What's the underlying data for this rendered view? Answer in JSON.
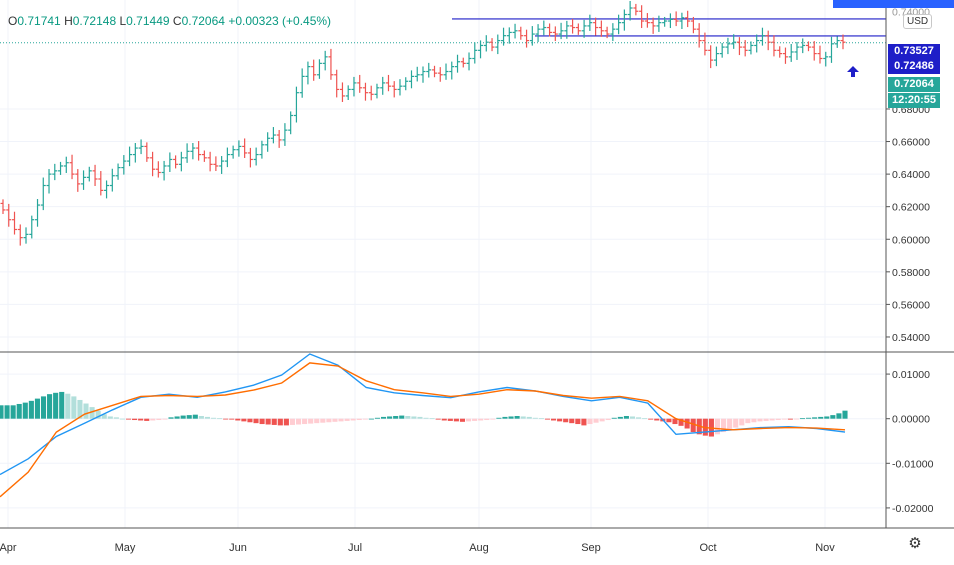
{
  "header": {
    "open_label": "O",
    "open_value": "0.71741",
    "high_label": "H",
    "high_value": "0.72148",
    "low_label": "L",
    "low_value": "0.71449",
    "close_label": "C",
    "close_value": "0.72064",
    "change": "+0.00323 (+0.45%)",
    "currency": "USD"
  },
  "price_tags": {
    "resistance_upper": "0.73527",
    "resistance_lower": "0.72486",
    "last_price": "0.72064",
    "countdown": "12:20:55"
  },
  "colors": {
    "up": "#26a69a",
    "down": "#ef5350",
    "line_blue": "#1e1ec8",
    "macd_line": "#2196f3",
    "signal_line": "#ff6d00",
    "hist_up_strong": "#26a69a",
    "hist_up_weak": "#b2dfdb",
    "hist_down_strong": "#ef5350",
    "hist_down_weak": "#ffcdd2",
    "accent": "#2962ff"
  },
  "chart_data": [
    {
      "type": "candlestick",
      "title": "",
      "x_tick_labels": [
        "Apr",
        "May",
        "Jun",
        "Jul",
        "Aug",
        "Sep",
        "Oct",
        "Nov"
      ],
      "y_tick_labels": [
        "0.54000",
        "0.56000",
        "0.58000",
        "0.60000",
        "0.62000",
        "0.64000",
        "0.66000",
        "0.68000"
      ],
      "y_axis_top_partial": "0.74000",
      "ylim": [
        0.532,
        0.742
      ],
      "grid": true,
      "horizontal_lines": [
        0.73527,
        0.72486
      ],
      "closes": [
        0.618,
        0.612,
        0.606,
        0.601,
        0.603,
        0.612,
        0.621,
        0.633,
        0.64,
        0.642,
        0.645,
        0.647,
        0.64,
        0.634,
        0.638,
        0.642,
        0.637,
        0.63,
        0.633,
        0.639,
        0.644,
        0.648,
        0.652,
        0.656,
        0.657,
        0.65,
        0.643,
        0.641,
        0.645,
        0.649,
        0.646,
        0.65,
        0.654,
        0.656,
        0.652,
        0.65,
        0.646,
        0.645,
        0.648,
        0.652,
        0.655,
        0.657,
        0.653,
        0.649,
        0.652,
        0.658,
        0.662,
        0.664,
        0.661,
        0.667,
        0.676,
        0.69,
        0.7,
        0.706,
        0.701,
        0.708,
        0.712,
        0.701,
        0.692,
        0.688,
        0.692,
        0.696,
        0.693,
        0.69,
        0.689,
        0.693,
        0.696,
        0.694,
        0.692,
        0.694,
        0.697,
        0.7,
        0.701,
        0.703,
        0.704,
        0.702,
        0.701,
        0.703,
        0.706,
        0.709,
        0.708,
        0.711,
        0.716,
        0.719,
        0.721,
        0.718,
        0.722,
        0.725,
        0.727,
        0.728,
        0.725,
        0.722,
        0.726,
        0.729,
        0.73,
        0.727,
        0.726,
        0.728,
        0.731,
        0.73,
        0.728,
        0.731,
        0.733,
        0.73,
        0.728,
        0.726,
        0.729,
        0.733,
        0.738,
        0.742,
        0.74,
        0.734,
        0.733,
        0.731,
        0.733,
        0.734,
        0.735,
        0.734,
        0.736,
        0.734,
        0.729,
        0.722,
        0.716,
        0.71,
        0.714,
        0.718,
        0.72,
        0.721,
        0.718,
        0.716,
        0.719,
        0.722,
        0.725,
        0.721,
        0.716,
        0.714,
        0.712,
        0.715,
        0.718,
        0.719,
        0.718,
        0.714,
        0.711,
        0.712,
        0.72,
        0.722,
        0.721
      ]
    },
    {
      "type": "macd",
      "title": "",
      "y_tick_labels": [
        "0.01000",
        "0.00000",
        "-0.01000",
        "-0.02000"
      ],
      "ylim": [
        -0.0245,
        0.0145
      ],
      "series": [
        {
          "name": "",
          "color_key": "macd_line",
          "x": [
            0,
            5,
            10,
            15,
            20,
            25,
            30,
            35,
            40,
            45,
            50,
            55,
            60,
            65,
            70,
            75,
            80,
            85,
            90,
            95,
            100,
            105,
            110,
            115,
            120,
            125,
            130,
            135,
            140,
            145,
            150
          ],
          "values": [
            -0.0125,
            -0.009,
            -0.004,
            -0.001,
            0.002,
            0.0048,
            0.0055,
            0.0048,
            0.006,
            0.0075,
            0.0098,
            0.0145,
            0.012,
            0.007,
            0.0058,
            0.0052,
            0.0047,
            0.006,
            0.007,
            0.0062,
            0.005,
            0.004,
            0.0048,
            0.0035,
            -0.0035,
            -0.003,
            -0.0025,
            -0.002,
            -0.0018,
            -0.0022,
            -0.003
          ]
        },
        {
          "name": "",
          "color_key": "signal_line",
          "x": [
            0,
            5,
            10,
            15,
            20,
            25,
            30,
            35,
            40,
            45,
            50,
            55,
            60,
            65,
            70,
            75,
            80,
            85,
            90,
            95,
            100,
            105,
            110,
            115,
            120,
            125,
            130,
            135,
            140,
            145,
            150
          ],
          "values": [
            -0.0175,
            -0.012,
            -0.003,
            0.001,
            0.003,
            0.005,
            0.0052,
            0.005,
            0.0053,
            0.0064,
            0.008,
            0.0125,
            0.0118,
            0.0085,
            0.0065,
            0.0058,
            0.005,
            0.0055,
            0.0065,
            0.0062,
            0.0052,
            0.0046,
            0.005,
            0.004,
            0.0,
            -0.002,
            -0.0025,
            -0.0022,
            -0.002,
            -0.0021,
            -0.0025
          ]
        }
      ],
      "histogram": [
        0.003,
        0.003,
        0.003,
        0.0033,
        0.0036,
        0.004,
        0.0045,
        0.005,
        0.0055,
        0.0058,
        0.006,
        0.0056,
        0.005,
        0.0042,
        0.0034,
        0.0026,
        0.0018,
        0.001,
        0.0005,
        0.0003,
        0.0,
        -0.0002,
        -0.0003,
        -0.0004,
        -0.0005,
        -0.0004,
        -0.0003,
        -0.0002,
        0.0003,
        0.0005,
        0.0007,
        0.0008,
        0.0009,
        0.0006,
        0.0004,
        0.0002,
        0.0001,
        -0.0001,
        -0.0002,
        -0.0004,
        -0.0006,
        -0.0008,
        -0.001,
        -0.0012,
        -0.0013,
        -0.0014,
        -0.0015,
        -0.0015,
        -0.0014,
        -0.0013,
        -0.0012,
        -0.0011,
        -0.001,
        -0.0009,
        -0.0008,
        -0.0007,
        -0.0006,
        -0.0005,
        -0.0004,
        -0.0003,
        -0.0002,
        0.0,
        0.0002,
        0.0004,
        0.0005,
        0.0006,
        0.0007,
        0.0006,
        0.0005,
        0.0004,
        0.0002,
        0.0001,
        -0.0002,
        -0.0004,
        -0.0005,
        -0.0006,
        -0.0007,
        -0.0006,
        -0.0005,
        -0.0004,
        -0.0003,
        -0.0002,
        0.0002,
        0.0004,
        0.0005,
        0.0006,
        0.0005,
        0.0004,
        0.0002,
        0.0001,
        -0.0002,
        -0.0004,
        -0.0006,
        -0.0008,
        -0.001,
        -0.0012,
        -0.0015,
        -0.0012,
        -0.0009,
        -0.0006,
        -0.0003,
        0.0002,
        0.0004,
        0.0006,
        0.0005,
        0.0003,
        0.0001,
        -0.0002,
        -0.0004,
        -0.0006,
        -0.0008,
        -0.0012,
        -0.0016,
        -0.0022,
        -0.003,
        -0.0035,
        -0.0038,
        -0.004,
        -0.0035,
        -0.003,
        -0.0025,
        -0.002,
        -0.0015,
        -0.001,
        -0.0008,
        -0.0006,
        -0.0005,
        -0.0004,
        -0.0003,
        -0.0002,
        -0.0002,
        -0.0001,
        0.0001,
        0.0002,
        0.0003,
        0.0004,
        0.0005,
        0.0008,
        0.0012,
        0.0018
      ]
    }
  ]
}
